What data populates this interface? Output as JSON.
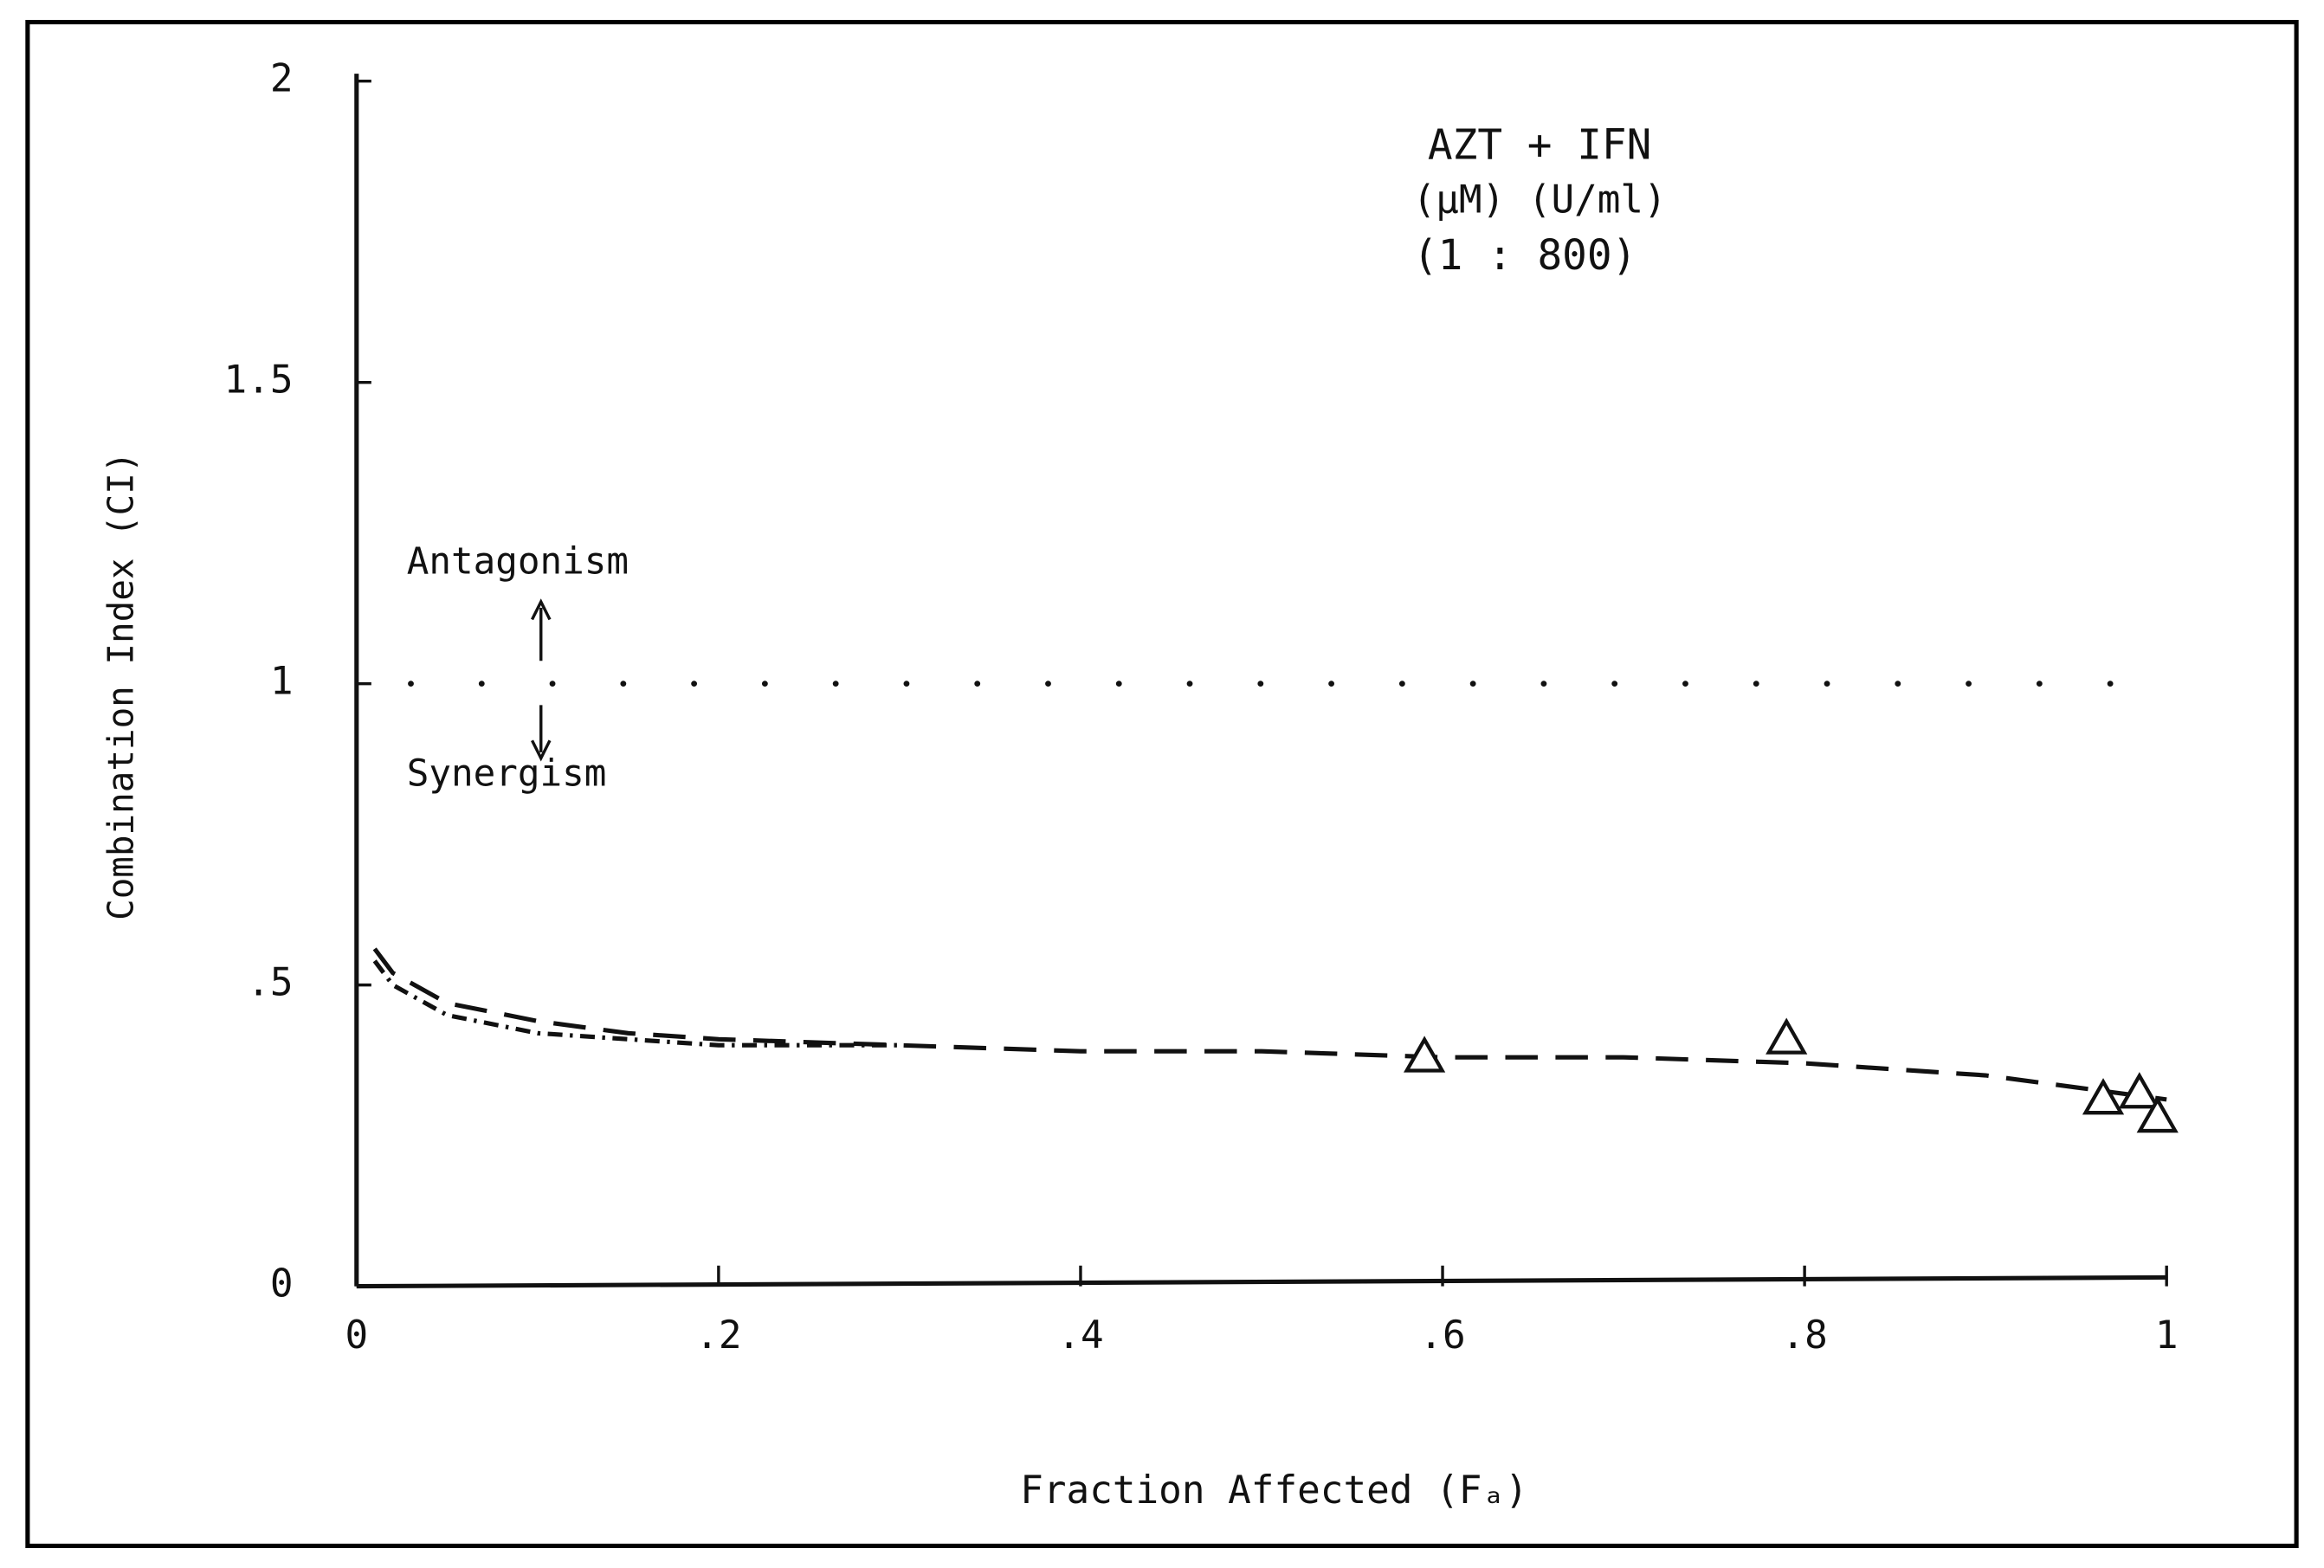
{
  "chart_data": {
    "type": "line",
    "x_label": "Fraction Affected (Fₐ)",
    "y_label": "Combination Index (CI)",
    "annotations": [
      "AZT + IFN",
      "(µM)  (U/ml)",
      "(1 : 800)",
      "Antagonism",
      "Synergism"
    ],
    "xlim": [
      0,
      1
    ],
    "ylim": [
      0,
      2
    ],
    "xticks": [
      0,
      {
        "value": 0.2,
        "label": ".2"
      },
      {
        "value": 0.4,
        "label": ".4"
      },
      {
        "value": 0.6,
        "label": ".6"
      },
      {
        "value": 0.8,
        "label": ".8"
      },
      1
    ],
    "yticks": [
      0,
      {
        "value": 0.5,
        "label": ".5"
      },
      1,
      {
        "value": 1.5,
        "label": "1.5"
      },
      2
    ],
    "reference_line": 1,
    "series": [
      {
        "style": "dashed",
        "color": "#111111",
        "x": [
          0.01,
          0.02,
          0.05,
          0.1,
          0.15,
          0.2,
          0.3,
          0.4,
          0.5,
          0.6,
          0.7,
          0.8,
          0.9,
          0.95,
          1.0
        ],
        "values": [
          0.56,
          0.52,
          0.47,
          0.44,
          0.42,
          0.41,
          0.4,
          0.39,
          0.39,
          0.38,
          0.38,
          0.37,
          0.35,
          0.33,
          0.31
        ]
      },
      {
        "style": "dashdot",
        "color": "#111111",
        "x": [
          0.01,
          0.02,
          0.05,
          0.1,
          0.15,
          0.2,
          0.25,
          0.3
        ],
        "values": [
          0.54,
          0.5,
          0.45,
          0.42,
          0.41,
          0.4,
          0.4,
          0.4
        ]
      },
      {
        "style": "triangles",
        "color": "#111111",
        "x": [
          0.59,
          0.79,
          0.965,
          0.985,
          0.995
        ],
        "values": [
          0.38,
          0.41,
          0.31,
          0.32,
          0.28
        ]
      }
    ]
  }
}
